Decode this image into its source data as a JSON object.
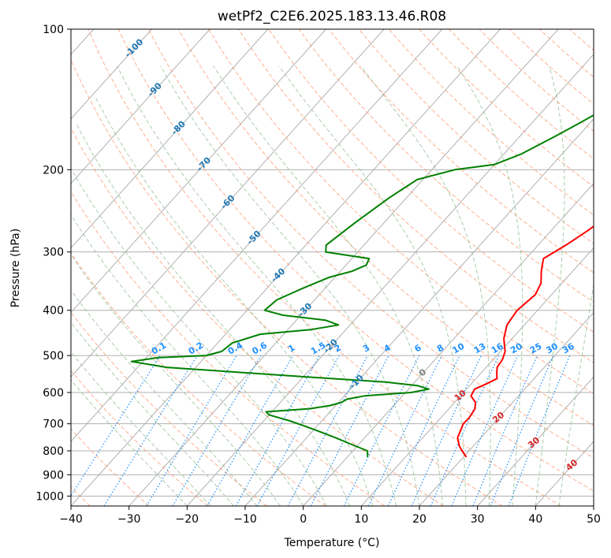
{
  "chart_data": {
    "type": "line",
    "title": "wetPf2_C2E6.2025.183.13.46.R08",
    "xlabel": "Temperature (°C)",
    "ylabel": "Pressure (hPa)",
    "xlim": [
      -40,
      50
    ],
    "ylim": [
      1050,
      100
    ],
    "y_scale": "log",
    "grid": true,
    "x_ticks": [
      "−40",
      "−30",
      "−20",
      "−10",
      "0",
      "10",
      "20",
      "30",
      "40",
      "50"
    ],
    "x_tick_values": [
      -40,
      -30,
      -20,
      -10,
      0,
      10,
      20,
      30,
      40,
      50
    ],
    "y_ticks": [
      "1000",
      "900",
      "800",
      "700",
      "600",
      "500",
      "400",
      "300",
      "200",
      "100"
    ],
    "y_tick_values": [
      1000,
      900,
      800,
      700,
      600,
      500,
      400,
      300,
      200,
      100
    ],
    "dry_adiabat_labels": [
      "-100",
      "-90",
      "-80",
      "-70",
      "-60",
      "-50",
      "-40",
      "-30",
      "-20",
      "-10"
    ],
    "dry_adiabat_label_temps": [
      -100,
      -90,
      -80,
      -70,
      -60,
      -50,
      -40,
      -30,
      -20,
      -10
    ],
    "moist_adiabat_labels": [
      "0",
      "10",
      "20",
      "30",
      "40"
    ],
    "moist_adiabat_label_temps": [
      0,
      10,
      20,
      30,
      40
    ],
    "mixing_ratio_labels": [
      "0.1",
      "0.2",
      "0.4",
      "0.6",
      "1",
      "1.5",
      "2",
      "3",
      "4",
      "6",
      "8",
      "10",
      "13",
      "16",
      "20",
      "25",
      "30",
      "36"
    ],
    "mixing_ratio_values": [
      0.1,
      0.2,
      0.4,
      0.6,
      1,
      1.5,
      2,
      3,
      4,
      6,
      8,
      10,
      13,
      16,
      20,
      25,
      30,
      36
    ],
    "colors": {
      "temperature": "#ff0000",
      "dewpoint": "#008000",
      "dry_adiabat": "#ffa07a",
      "moist_adiabat": "#8fbc8f",
      "mixing_ratio": "#1e90ff",
      "dry_label": "#1f77b4",
      "moist_label": "#d62728",
      "zero_label": "#808080"
    },
    "series": [
      {
        "key": "temperature",
        "pressure": [
          825,
          800,
          780,
          750,
          700,
          680,
          650,
          630,
          610,
          590,
          575,
          560,
          545,
          530,
          510,
          490,
          460,
          430,
          400,
          370,
          350,
          330,
          310,
          290,
          270,
          250,
          230,
          210,
          190,
          170,
          150,
          140,
          130,
          120,
          110,
          100
        ],
        "values": [
          20.5,
          18.8,
          17.5,
          16,
          14.8,
          14.9,
          14.5,
          13.6,
          11.8,
          11.4,
          12.6,
          13.6,
          12.7,
          11.9,
          11.6,
          10.8,
          8.6,
          7,
          6.5,
          7.2,
          6.4,
          4.6,
          3,
          4.8,
          6.3,
          7.5,
          7.4,
          6.5,
          5.4,
          6.3,
          8.4,
          9,
          8.7,
          9.2,
          11.3,
          16
        ]
      },
      {
        "key": "dewpoint",
        "pressure": [
          825,
          800,
          780,
          750,
          720,
          690,
          670,
          660,
          650,
          640,
          630,
          620,
          610,
          600,
          590,
          580,
          570,
          560,
          545,
          530,
          515,
          505,
          500,
          490,
          470,
          450,
          440,
          430,
          420,
          410,
          400,
          380,
          360,
          340,
          330,
          320,
          310,
          300,
          290,
          260,
          230,
          210,
          200,
          195,
          185,
          170,
          160,
          150,
          140,
          130,
          120,
          110,
          100
        ],
        "values": [
          3.5,
          2.5,
          -0.5,
          -5,
          -10,
          -15.5,
          -20,
          -21,
          -14,
          -11,
          -9.5,
          -9,
          -6.5,
          1,
          3.5,
          1,
          -5,
          -15,
          -30,
          -45,
          -52,
          -48,
          -40,
          -38,
          -37.5,
          -34,
          -26,
          -22,
          -25,
          -33,
          -37,
          -36.5,
          -34,
          -31,
          -28,
          -26.5,
          -27,
          -35.5,
          -36.5,
          -35,
          -33,
          -31,
          -26,
          -20,
          -17,
          -14,
          -12,
          -10,
          -8,
          -6,
          -5,
          -5.5,
          -2
        ]
      }
    ]
  }
}
